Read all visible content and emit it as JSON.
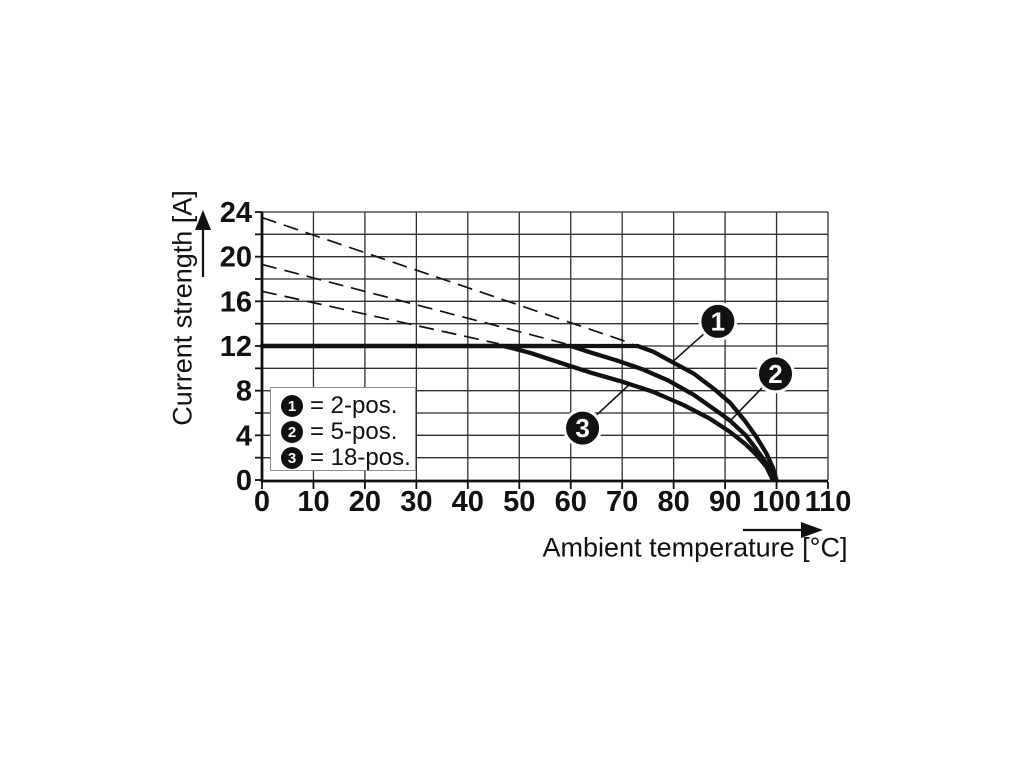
{
  "page": {
    "background": "#ffffff",
    "ink_color": "#111111",
    "grid_color": "#2f2f2f",
    "legend_border_color": "#8f8f8f"
  },
  "chart_data": {
    "type": "line",
    "title": "",
    "xlabel": "Ambient temperature [°C]",
    "ylabel": "Current strength [A]",
    "xlim": [
      0,
      110
    ],
    "ylim": [
      0,
      24
    ],
    "x_ticks": [
      0,
      10,
      20,
      30,
      40,
      50,
      60,
      70,
      80,
      90,
      100,
      110
    ],
    "y_ticks": [
      0,
      4,
      8,
      12,
      16,
      20,
      24
    ],
    "x_grid_step": 10,
    "y_grid_step": 2,
    "grid": true,
    "legend_position": "inside-lower-left",
    "series": [
      {
        "badge": "1",
        "name": "2-pos.",
        "points": [
          [
            0,
            12
          ],
          [
            73,
            12
          ],
          [
            76,
            11.5
          ],
          [
            80,
            10.5
          ],
          [
            84,
            9.5
          ],
          [
            88,
            8.1
          ],
          [
            91,
            6.9
          ],
          [
            94,
            5.2
          ],
          [
            96,
            3.9
          ],
          [
            98,
            2.4
          ],
          [
            99.3,
            1.1
          ],
          [
            100,
            0
          ]
        ]
      },
      {
        "badge": "2",
        "name": "5-pos.",
        "points": [
          [
            0,
            12
          ],
          [
            60,
            12
          ],
          [
            64,
            11.4
          ],
          [
            69,
            10.7
          ],
          [
            74,
            9.9
          ],
          [
            79,
            8.9
          ],
          [
            84,
            7.6
          ],
          [
            88,
            6.3
          ],
          [
            91,
            5.3
          ],
          [
            94,
            4.0
          ],
          [
            96,
            2.8
          ],
          [
            98,
            1.5
          ],
          [
            99.8,
            0
          ]
        ]
      },
      {
        "badge": "3",
        "name": "18-pos.",
        "points": [
          [
            0,
            12
          ],
          [
            47,
            12
          ],
          [
            52,
            11.4
          ],
          [
            58,
            10.5
          ],
          [
            64,
            9.6
          ],
          [
            70,
            8.8
          ],
          [
            76,
            7.9
          ],
          [
            82,
            6.7
          ],
          [
            87,
            5.5
          ],
          [
            91,
            4.3
          ],
          [
            94,
            3.2
          ],
          [
            96,
            2.3
          ],
          [
            98,
            1.2
          ],
          [
            99.3,
            0
          ]
        ]
      }
    ],
    "dashed_lines": [
      {
        "from": [
          0,
          23.5
        ],
        "to": [
          72,
          12.2
        ]
      },
      {
        "from": [
          0,
          19.3
        ],
        "to": [
          59,
          12.2
        ]
      },
      {
        "from": [
          0,
          16.9
        ],
        "to": [
          46,
          12.2
        ]
      }
    ],
    "annotations": [
      {
        "badge": "1",
        "center": [
          88.6,
          14.2
        ],
        "target": [
          79.7,
          10.55
        ]
      },
      {
        "badge": "2",
        "center": [
          99.8,
          9.5
        ],
        "target": [
          91.0,
          5.3
        ]
      },
      {
        "badge": "3",
        "center": [
          62.3,
          4.65
        ],
        "target": [
          71.4,
          8.55
        ]
      }
    ],
    "legend": {
      "items": [
        {
          "badge": "1",
          "label": "= 2-pos."
        },
        {
          "badge": "2",
          "label": "= 5-pos."
        },
        {
          "badge": "3",
          "label": "= 18-pos."
        }
      ]
    }
  }
}
